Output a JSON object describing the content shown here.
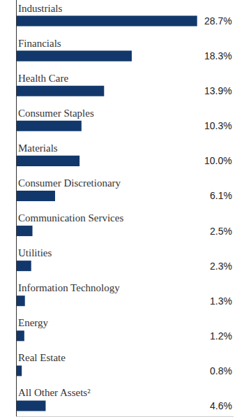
{
  "chart_data": {
    "type": "bar",
    "orientation": "horizontal",
    "categories": [
      "Industrials",
      "Financials",
      "Health Care",
      "Consumer Staples",
      "Materials",
      "Consumer Discretionary",
      "Communication Services",
      "Utilities",
      "Information Technology",
      "Energy",
      "Real Estate",
      "All Other Assets²"
    ],
    "values": [
      28.7,
      18.3,
      13.9,
      10.3,
      10.0,
      6.1,
      2.5,
      2.3,
      1.3,
      1.2,
      0.8,
      4.6
    ],
    "value_labels": [
      "28.7%",
      "18.3%",
      "13.9%",
      "10.3%",
      "10.0%",
      "6.1%",
      "2.5%",
      "2.3%",
      "1.3%",
      "1.2%",
      "0.8%",
      "4.6%"
    ],
    "color": "#12386b",
    "xlim": [
      0,
      34.5
    ],
    "xticks": [],
    "data_labels": true,
    "tick_labels": false,
    "grid": false
  }
}
